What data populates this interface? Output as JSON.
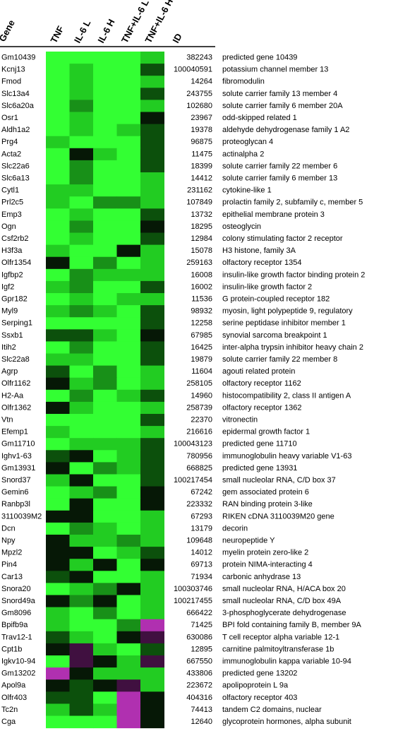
{
  "chart_data": {
    "type": "heatmap",
    "row_header": "Gene",
    "id_header": "ID",
    "categories": [
      "TNF",
      "IL-6 L",
      "IL-6 H",
      "TNF+IL-6 L",
      "TNF+IL-6 H"
    ],
    "rows": [
      {
        "gene": "Gm10439",
        "id": 382243,
        "description": "predicted gene 10439",
        "colors": [
          "#33ff33",
          "#33ff33",
          "#33ff33",
          "#33ff33",
          "#22cc22"
        ]
      },
      {
        "gene": "Kcnj13",
        "id": 100040591,
        "description": "potassium channel member 13",
        "colors": [
          "#33ff33",
          "#22cc22",
          "#33ff33",
          "#33ff33",
          "#0c500c"
        ]
      },
      {
        "gene": "Fmod",
        "id": 14264,
        "description": "fibromodulin",
        "colors": [
          "#33ff33",
          "#22cc22",
          "#33ff33",
          "#33ff33",
          "#22cc22"
        ]
      },
      {
        "gene": "Slc13a4",
        "id": 243755,
        "description": "solute carrier family 13  member 4",
        "colors": [
          "#33ff33",
          "#22cc22",
          "#33ff33",
          "#33ff33",
          "#0c500c"
        ]
      },
      {
        "gene": "Slc6a20a",
        "id": 102680,
        "description": "solute carrier family 6  member 20A",
        "colors": [
          "#33ff33",
          "#189018",
          "#33ff33",
          "#33ff33",
          "#22cc22"
        ]
      },
      {
        "gene": "Osr1",
        "id": 23967,
        "description": "odd-skipped related 1",
        "colors": [
          "#33ff33",
          "#22cc22",
          "#33ff33",
          "#33ff33",
          "#061806"
        ]
      },
      {
        "gene": "Aldh1a2",
        "id": 19378,
        "description": "aldehyde dehydrogenase family 1 A2",
        "colors": [
          "#33ff33",
          "#22cc22",
          "#33ff33",
          "#22cc22",
          "#0c500c"
        ]
      },
      {
        "gene": "Prg4",
        "id": 96875,
        "description": "proteoglycan 4",
        "colors": [
          "#22cc22",
          "#33ff33",
          "#33ff33",
          "#33ff33",
          "#0c500c"
        ]
      },
      {
        "gene": "Acta2",
        "id": 11475,
        "description": "actinalpha 2",
        "colors": [
          "#33ff33",
          "#061806",
          "#22cc22",
          "#33ff33",
          "#0c500c"
        ]
      },
      {
        "gene": "Slc22a6",
        "id": 18399,
        "description": "solute carrier family 22  member 6",
        "colors": [
          "#33ff33",
          "#189018",
          "#33ff33",
          "#33ff33",
          "#0c500c"
        ]
      },
      {
        "gene": "Slc6a13",
        "id": 14412,
        "description": "solute carrier family 6 member 13",
        "colors": [
          "#33ff33",
          "#189018",
          "#33ff33",
          "#33ff33",
          "#22cc22"
        ]
      },
      {
        "gene": "Cytl1",
        "id": 231162,
        "description": "cytokine-like 1",
        "colors": [
          "#22cc22",
          "#22cc22",
          "#33ff33",
          "#33ff33",
          "#22cc22"
        ]
      },
      {
        "gene": "Prl2c5",
        "id": 107849,
        "description": "prolactin family 2, subfamily c, member 5",
        "colors": [
          "#22cc22",
          "#33ff33",
          "#189018",
          "#189018",
          "#22cc22"
        ]
      },
      {
        "gene": "Emp3",
        "id": 13732,
        "description": "epithelial membrane protein 3",
        "colors": [
          "#33ff33",
          "#22cc22",
          "#33ff33",
          "#33ff33",
          "#0c500c"
        ]
      },
      {
        "gene": "Ogn",
        "id": 18295,
        "description": "osteoglycin",
        "colors": [
          "#33ff33",
          "#189018",
          "#33ff33",
          "#33ff33",
          "#061806"
        ]
      },
      {
        "gene": "Csf2rb2",
        "id": 12984,
        "description": "colony stimulating factor 2 receptor",
        "colors": [
          "#33ff33",
          "#22cc22",
          "#33ff33",
          "#33ff33",
          "#0c500c"
        ]
      },
      {
        "gene": "H3f3a",
        "id": 15078,
        "description": "H3 histone, family 3A",
        "colors": [
          "#22cc22",
          "#33ff33",
          "#33ff33",
          "#061806",
          "#22cc22"
        ]
      },
      {
        "gene": "Olfr1354",
        "id": 259163,
        "description": "olfactory receptor 1354",
        "colors": [
          "#061806",
          "#33ff33",
          "#189018",
          "#33ff33",
          "#22cc22"
        ]
      },
      {
        "gene": "Igfbp2",
        "id": 16008,
        "description": "insulin-like growth factor binding protein 2",
        "colors": [
          "#33ff33",
          "#189018",
          "#22cc22",
          "#22cc22",
          "#22cc22"
        ]
      },
      {
        "gene": "Igf2",
        "id": 16002,
        "description": "insulin-like growth factor 2",
        "colors": [
          "#22cc22",
          "#189018",
          "#33ff33",
          "#33ff33",
          "#0c500c"
        ]
      },
      {
        "gene": "Gpr182",
        "id": 11536,
        "description": "G protein-coupled receptor 182",
        "colors": [
          "#33ff33",
          "#22cc22",
          "#33ff33",
          "#22cc22",
          "#22cc22"
        ]
      },
      {
        "gene": "Myl9",
        "id": 98932,
        "description": "myosin, light polypeptide 9, regulatory",
        "colors": [
          "#22cc22",
          "#189018",
          "#22cc22",
          "#33ff33",
          "#0c500c"
        ]
      },
      {
        "gene": "Serping1",
        "id": 12258,
        "description": "serine peptidase inhibitor member 1",
        "colors": [
          "#33ff33",
          "#33ff33",
          "#33ff33",
          "#33ff33",
          "#0c500c"
        ]
      },
      {
        "gene": "Ssxb1",
        "id": 67985,
        "description": "synovial sarcoma breakpoint 1",
        "colors": [
          "#0c500c",
          "#0c500c",
          "#22cc22",
          "#33ff33",
          "#061806"
        ]
      },
      {
        "gene": "Itih2",
        "id": 16425,
        "description": "inter-alpha trypsin inhibitor heavy chain 2",
        "colors": [
          "#33ff33",
          "#189018",
          "#33ff33",
          "#33ff33",
          "#0c500c"
        ]
      },
      {
        "gene": "Slc22a8",
        "id": 19879,
        "description": "solute carrier family 22 member 8",
        "colors": [
          "#22cc22",
          "#22cc22",
          "#33ff33",
          "#33ff33",
          "#0c500c"
        ]
      },
      {
        "gene": "Agrp",
        "id": 11604,
        "description": "agouti related protein",
        "colors": [
          "#0c500c",
          "#33ff33",
          "#189018",
          "#33ff33",
          "#22cc22"
        ]
      },
      {
        "gene": "Olfr1162",
        "id": 258105,
        "description": "olfactory receptor 1162",
        "colors": [
          "#061806",
          "#22cc22",
          "#189018",
          "#33ff33",
          "#22cc22"
        ]
      },
      {
        "gene": "H2-Aa",
        "id": 14960,
        "description": "histocompatibility 2, class II antigen A",
        "colors": [
          "#33ff33",
          "#189018",
          "#33ff33",
          "#22cc22",
          "#0c500c"
        ]
      },
      {
        "gene": "Olfr1362",
        "id": 258739,
        "description": "olfactory receptor 1362",
        "colors": [
          "#061806",
          "#22cc22",
          "#33ff33",
          "#33ff33",
          "#22cc22"
        ]
      },
      {
        "gene": "Vtn",
        "id": 22370,
        "description": "vitronectin",
        "colors": [
          "#33ff33",
          "#33ff33",
          "#33ff33",
          "#33ff33",
          "#0c500c"
        ]
      },
      {
        "gene": "Efemp1",
        "id": 216616,
        "description": "epidermal growth factor 1",
        "colors": [
          "#22cc22",
          "#33ff33",
          "#33ff33",
          "#33ff33",
          "#22cc22"
        ]
      },
      {
        "gene": "Gm11710",
        "id": 100043123,
        "description": "predicted gene 11710",
        "colors": [
          "#33ff33",
          "#22cc22",
          "#22cc22",
          "#22cc22",
          "#0c500c"
        ]
      },
      {
        "gene": "Ighv1-63",
        "id": 780956,
        "description": "immunoglobulin heavy variable V1-63",
        "colors": [
          "#0c500c",
          "#061806",
          "#33ff33",
          "#22cc22",
          "#0c500c"
        ]
      },
      {
        "gene": "Gm13931",
        "id": 668825,
        "description": "predicted gene 13931",
        "colors": [
          "#061806",
          "#33ff33",
          "#189018",
          "#22cc22",
          "#0c500c"
        ]
      },
      {
        "gene": "Snord37",
        "id": 100217454,
        "description": "small nucleolar RNA, C/D box 37",
        "colors": [
          "#22cc22",
          "#061806",
          "#33ff33",
          "#33ff33",
          "#0c500c"
        ]
      },
      {
        "gene": "Gemin6",
        "id": 67242,
        "description": "gem associated protein 6",
        "colors": [
          "#33ff33",
          "#22cc22",
          "#189018",
          "#33ff33",
          "#061806"
        ]
      },
      {
        "gene": "Ranbp3l",
        "id": 223332,
        "description": "RAN binding protein 3-like",
        "colors": [
          "#33ff33",
          "#061806",
          "#33ff33",
          "#33ff33",
          "#061806"
        ]
      },
      {
        "gene": "3110039M2",
        "id": 67293,
        "description": "RIKEN cDNA 3110039M20 gene",
        "colors": [
          "#061806",
          "#061806",
          "#33ff33",
          "#33ff33",
          "#22cc22"
        ]
      },
      {
        "gene": "Dcn",
        "id": 13179,
        "description": "decorin",
        "colors": [
          "#33ff33",
          "#189018",
          "#22cc22",
          "#33ff33",
          "#22cc22"
        ]
      },
      {
        "gene": "Npy",
        "id": 109648,
        "description": "neuropeptide Y",
        "colors": [
          "#061806",
          "#22cc22",
          "#22cc22",
          "#189018",
          "#22cc22"
        ]
      },
      {
        "gene": "Mpzl2",
        "id": 14012,
        "description": "myelin protein zero-like 2",
        "colors": [
          "#061806",
          "#061806",
          "#33ff33",
          "#22cc22",
          "#0c500c"
        ]
      },
      {
        "gene": "Pin4",
        "id": 69713,
        "description": "protein NIMA-interacting 4",
        "colors": [
          "#061806",
          "#22cc22",
          "#061806",
          "#33ff33",
          "#061806"
        ]
      },
      {
        "gene": "Car13",
        "id": 71934,
        "description": "carbonic anhydrase 13",
        "colors": [
          "#0c500c",
          "#061806",
          "#33ff33",
          "#33ff33",
          "#22cc22"
        ]
      },
      {
        "gene": "Snora20",
        "id": 100303746,
        "description": "small nucleolar RNA, H/ACA box 20",
        "colors": [
          "#33ff33",
          "#22cc22",
          "#189018",
          "#061806",
          "#22cc22"
        ]
      },
      {
        "gene": "Snord49a",
        "id": 100217455,
        "description": "small nucleolar RNA, C/D box 49A",
        "colors": [
          "#061806",
          "#189018",
          "#061806",
          "#33ff33",
          "#22cc22"
        ]
      },
      {
        "gene": "Gm8096",
        "id": 666422,
        "description": "3-phosphoglycerate dehydrogenase",
        "colors": [
          "#22cc22",
          "#33ff33",
          "#189018",
          "#33ff33",
          "#22cc22"
        ]
      },
      {
        "gene": "Bpifb9a",
        "id": 71425,
        "description": "BPI fold containing family B, member 9A",
        "colors": [
          "#22cc22",
          "#33ff33",
          "#33ff33",
          "#189018",
          "#b030b0"
        ]
      },
      {
        "gene": "Trav12-1",
        "id": 630086,
        "description": "T cell receptor alpha variable 12-1",
        "colors": [
          "#0c500c",
          "#22cc22",
          "#33ff33",
          "#061806",
          "#401040"
        ]
      },
      {
        "gene": "Cpt1b",
        "id": 12895,
        "description": "carnitine palmitoyltransferase 1b",
        "colors": [
          "#061806",
          "#401040",
          "#22cc22",
          "#33ff33",
          "#0c500c"
        ]
      },
      {
        "gene": "Igkv10-94",
        "id": 667550,
        "description": "immunoglobulin kappa variable 10-94",
        "colors": [
          "#33ff33",
          "#401040",
          "#061806",
          "#22cc22",
          "#401040"
        ]
      },
      {
        "gene": "Gm13202",
        "id": 433806,
        "description": "predicted gene 13202",
        "colors": [
          "#b030b0",
          "#061806",
          "#22cc22",
          "#22cc22",
          "#22cc22"
        ]
      },
      {
        "gene": "Apol9a",
        "id": 223672,
        "description": "apolipoprotein L 9a",
        "colors": [
          "#061806",
          "#0c500c",
          "#061806",
          "#401040",
          "#22cc22"
        ]
      },
      {
        "gene": "Olfr403",
        "id": 404316,
        "description": "olfactory receptor 403",
        "colors": [
          "#0c500c",
          "#0c500c",
          "#33ff33",
          "#b030b0",
          "#061806"
        ]
      },
      {
        "gene": "Tc2n",
        "id": 74413,
        "description": "tandem C2 domains, nuclear",
        "colors": [
          "#22cc22",
          "#0c500c",
          "#22cc22",
          "#b030b0",
          "#061806"
        ]
      },
      {
        "gene": "Cga",
        "id": 12640,
        "description": "glycoprotein hormones, alpha subunit",
        "colors": [
          "#33ff33",
          "#33ff33",
          "#33ff33",
          "#b030b0",
          "#061806"
        ]
      }
    ]
  }
}
